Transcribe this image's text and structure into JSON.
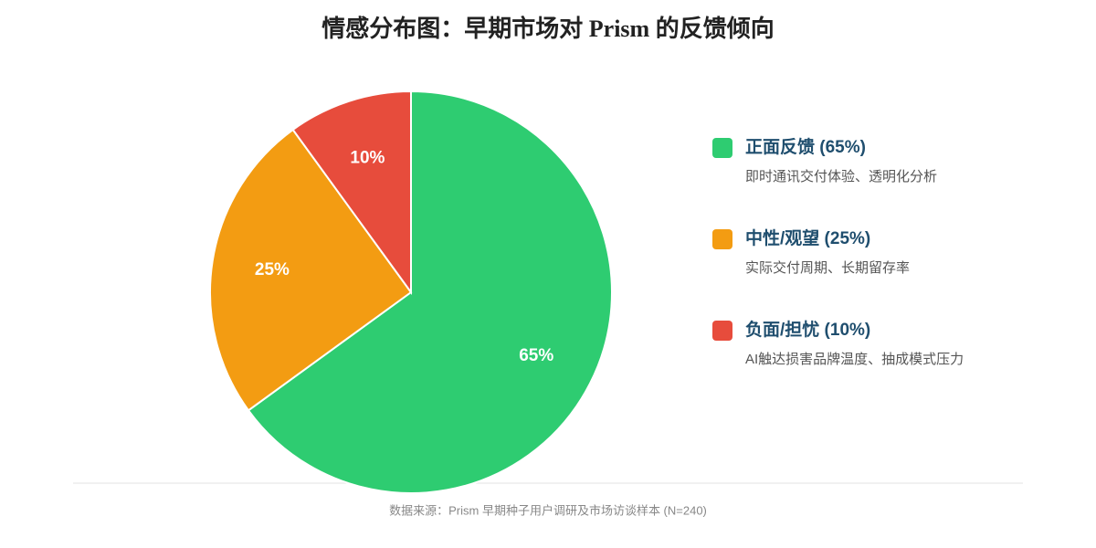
{
  "chart_data": {
    "type": "pie",
    "title": "情感分布图：早期市场对 Prism 的反馈倾向",
    "categories": [
      "正面反馈 (65%)",
      "中性/观望 (25%)",
      "负面/担忧 (10%)"
    ],
    "descriptions": [
      "即时通讯交付体验、透明化分析",
      "实际交付周期、长期留存率",
      "AI触达损害品牌温度、抽成模式压力"
    ],
    "values": [
      65,
      25,
      10
    ],
    "value_labels": [
      "65%",
      "25%",
      "10%"
    ],
    "colors": [
      "#2ecc71",
      "#f39c12",
      "#e74c3c"
    ],
    "legend": "right",
    "source": "数据来源：Prism 早期种子用户调研及市场访谈样本 (N=240)"
  }
}
